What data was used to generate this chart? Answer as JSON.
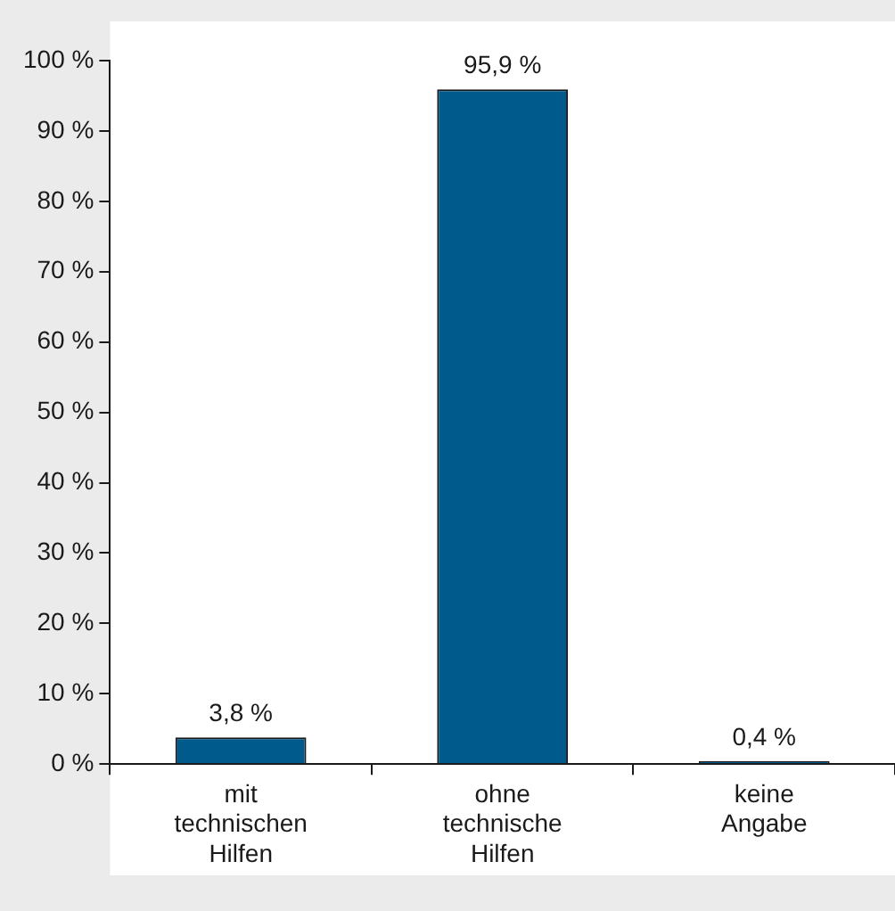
{
  "chart_data": {
    "type": "bar",
    "categories": [
      "mit technischen Hilfen",
      "ohne technische Hilfen",
      "keine Angabe"
    ],
    "values": [
      3.8,
      95.9,
      0.4
    ],
    "value_labels": [
      "3,8 %",
      "95,9 %",
      "0,4 %"
    ],
    "color": "#005a8c",
    "ylim": [
      0,
      100
    ],
    "yticks": [
      {
        "value": 0,
        "label": "0 %"
      },
      {
        "value": 10,
        "label": "10 %"
      },
      {
        "value": 20,
        "label": "20 %"
      },
      {
        "value": 30,
        "label": "30 %"
      },
      {
        "value": 40,
        "label": "40 %"
      },
      {
        "value": 50,
        "label": "50 %"
      },
      {
        "value": 60,
        "label": "60 %"
      },
      {
        "value": 70,
        "label": "70 %"
      },
      {
        "value": 80,
        "label": "80 %"
      },
      {
        "value": 90,
        "label": "90 %"
      },
      {
        "value": 100,
        "label": "100 %"
      }
    ],
    "grid": false,
    "legend": false
  }
}
